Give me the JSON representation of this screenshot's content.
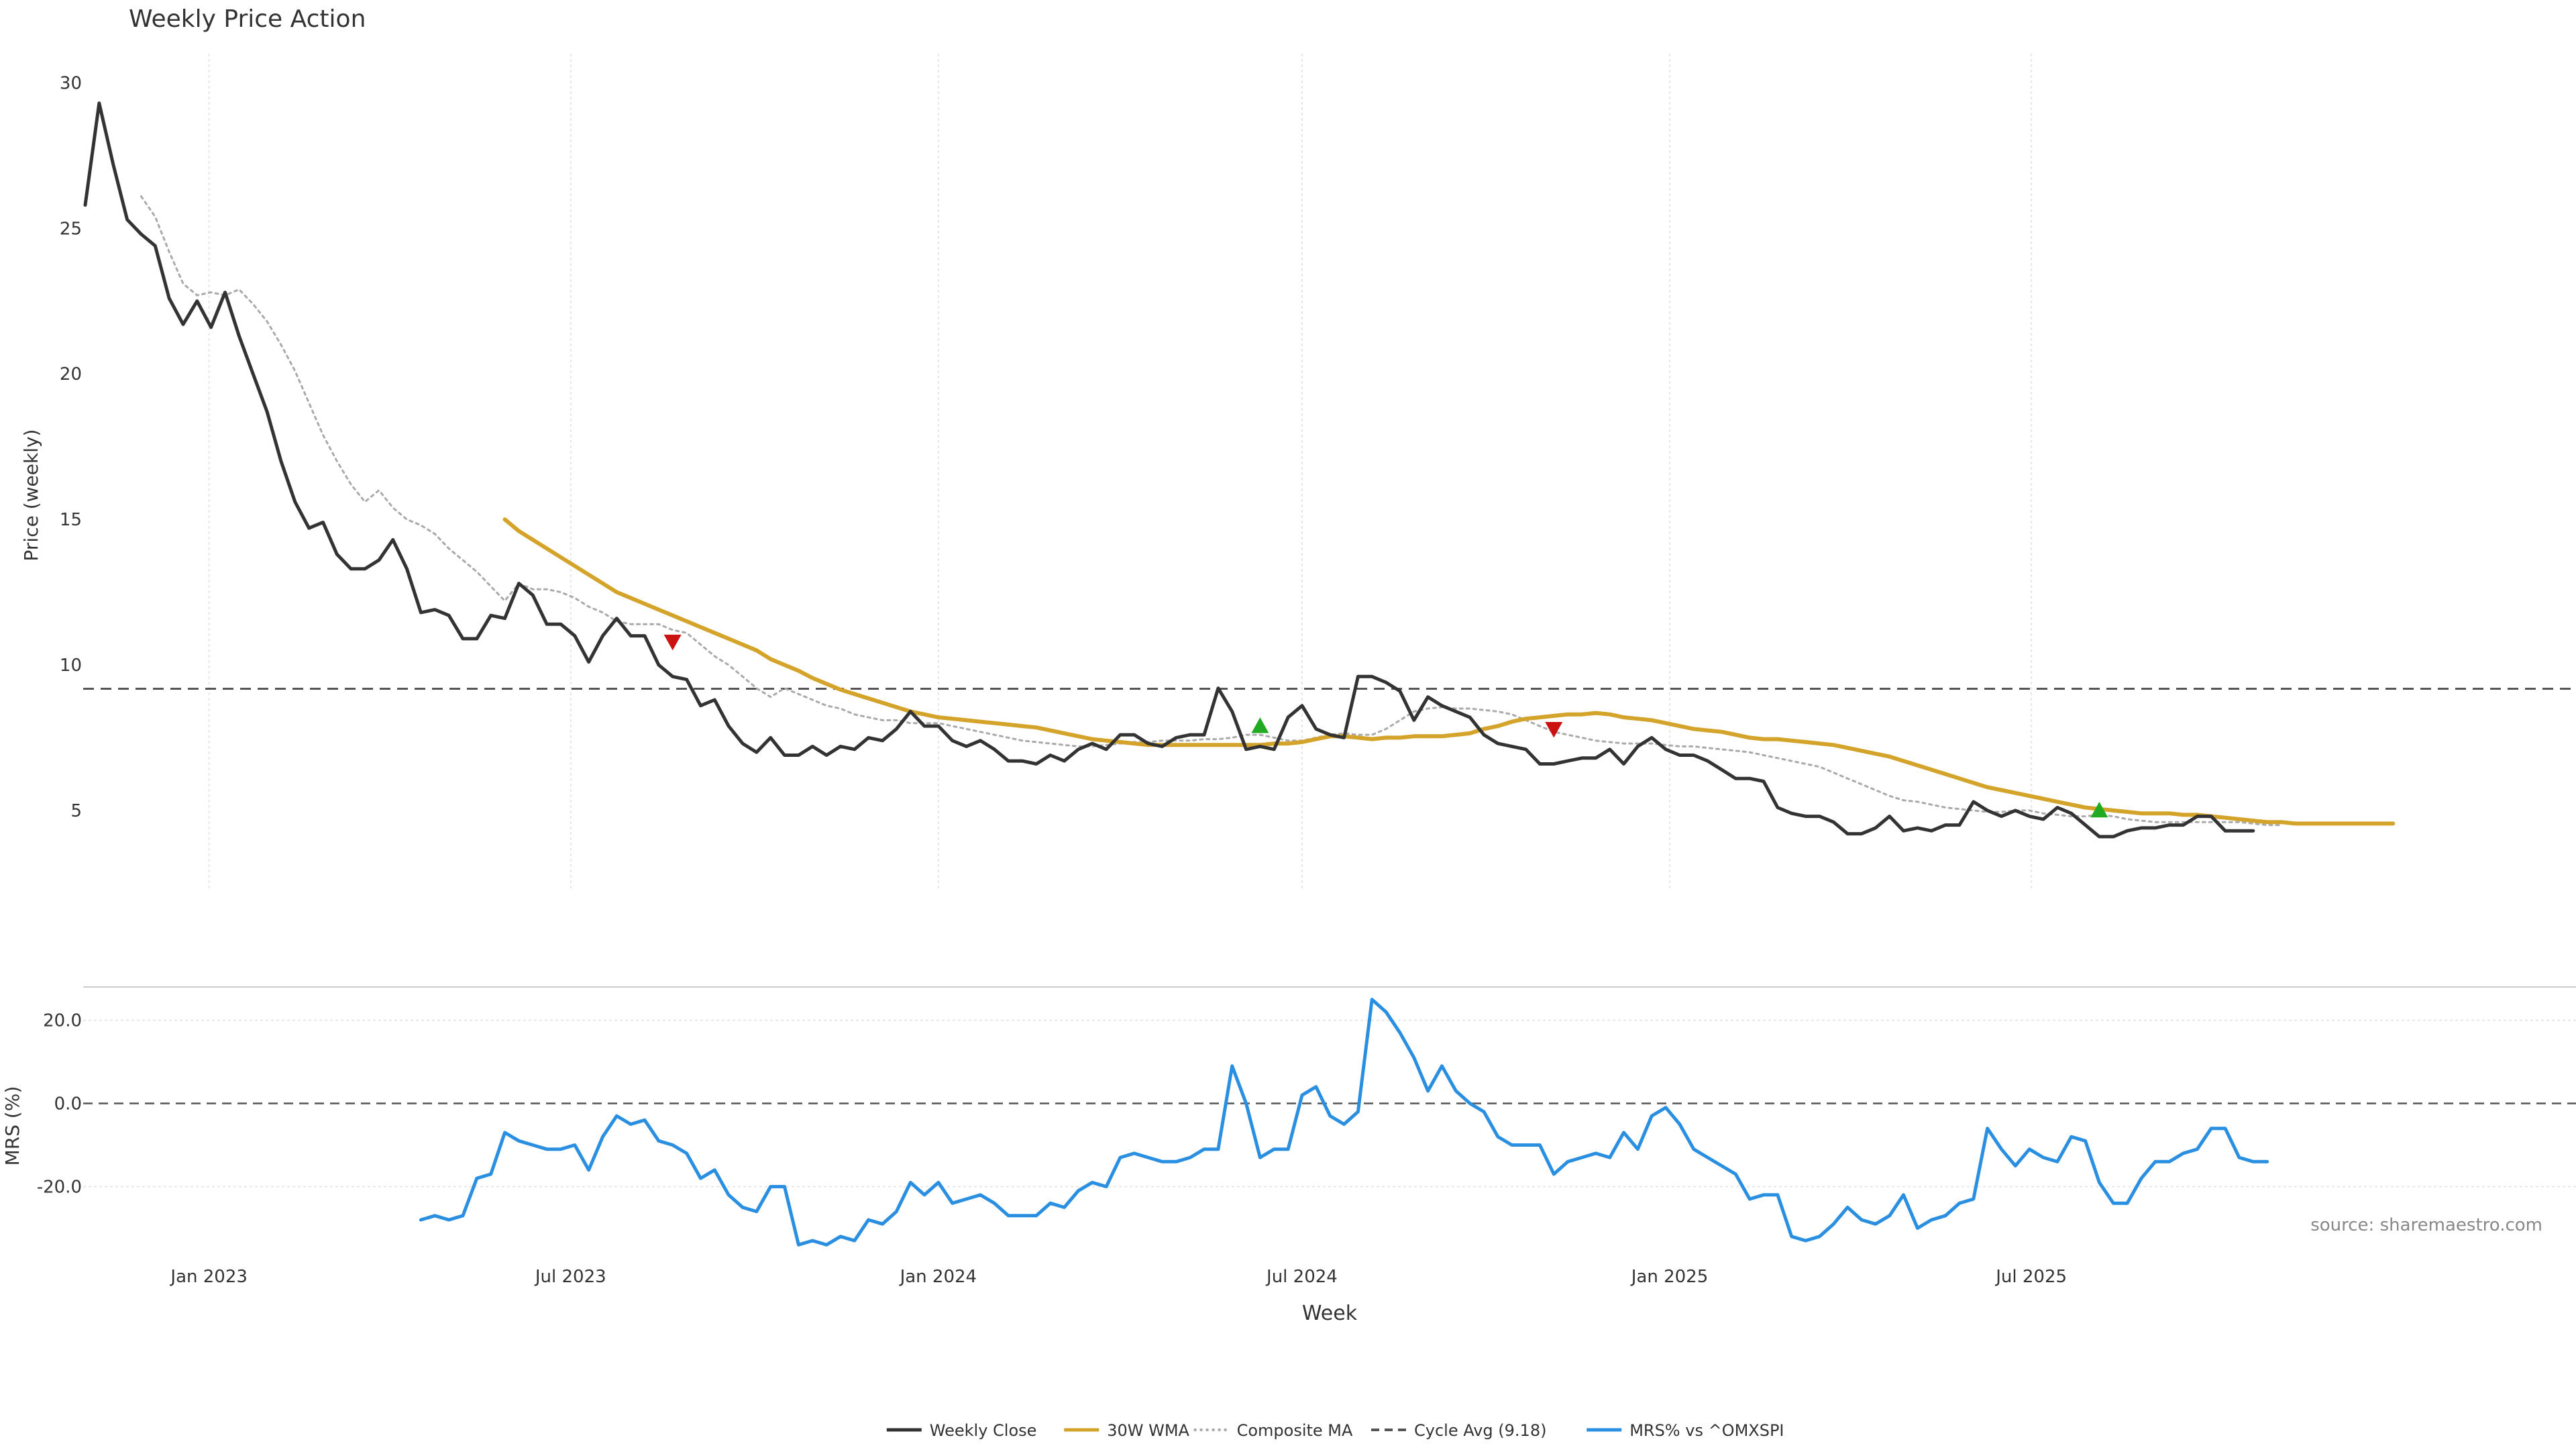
{
  "chart_data": [
    {
      "panel": "price",
      "type": "line",
      "title": "Weekly Price Action",
      "ylabel": "Price (weekly)",
      "ylim": [
        2.3,
        31
      ],
      "yticks": [
        5,
        10,
        15,
        20,
        25,
        30
      ],
      "grid": true,
      "x_start": "2022-10-31",
      "x_step_days": 7,
      "series": [
        {
          "name": "Weekly Close",
          "color": "#333333",
          "style": "solid",
          "values": [
            25.8,
            29.3,
            27.2,
            25.3,
            24.8,
            24.4,
            22.6,
            21.7,
            22.5,
            21.6,
            22.8,
            21.3,
            20.0,
            18.7,
            17.0,
            15.6,
            14.7,
            14.9,
            13.8,
            13.3,
            13.3,
            13.6,
            14.3,
            13.3,
            11.8,
            11.9,
            11.7,
            10.9,
            10.9,
            11.7,
            11.6,
            12.8,
            12.4,
            11.4,
            11.4,
            11.0,
            10.1,
            11.0,
            11.6,
            11.0,
            11.0,
            10.0,
            9.6,
            9.5,
            8.6,
            8.8,
            7.9,
            7.3,
            7.0,
            7.5,
            6.9,
            6.9,
            7.2,
            6.9,
            7.2,
            7.1,
            7.5,
            7.4,
            7.8,
            8.4,
            7.9,
            7.9,
            7.4,
            7.2,
            7.4,
            7.1,
            6.7,
            6.7,
            6.6,
            6.9,
            6.7,
            7.1,
            7.3,
            7.1,
            7.6,
            7.6,
            7.3,
            7.2,
            7.5,
            7.6,
            7.6,
            9.2,
            8.4,
            7.1,
            7.2,
            7.1,
            8.2,
            8.6,
            7.8,
            7.6,
            7.5,
            9.6,
            9.6,
            9.4,
            9.1,
            8.1,
            8.9,
            8.6,
            8.4,
            8.2,
            7.6,
            7.3,
            7.2,
            7.1,
            6.6,
            6.6,
            6.7,
            6.8,
            6.8,
            7.1,
            6.6,
            7.2,
            7.5,
            7.1,
            6.9,
            6.9,
            6.7,
            6.4,
            6.1,
            6.1,
            6.0,
            5.1,
            4.9,
            4.8,
            4.8,
            4.6,
            4.2,
            4.2,
            4.4,
            4.8,
            4.3,
            4.4,
            4.3,
            4.5,
            4.5,
            5.3,
            5.0,
            4.8,
            5.0,
            4.8,
            4.7,
            5.1,
            4.9,
            4.5,
            4.1,
            4.1,
            4.3,
            4.4,
            4.4,
            4.5,
            4.5,
            4.8,
            4.8,
            4.3,
            4.3,
            4.3
          ]
        },
        {
          "name": "30W WMA",
          "color": "#d4a32a",
          "style": "solid",
          "start_index": 30,
          "values": [
            15.0,
            14.6,
            14.3,
            14.0,
            13.7,
            13.4,
            13.1,
            12.8,
            12.5,
            12.3,
            12.1,
            11.9,
            11.7,
            11.5,
            11.3,
            11.1,
            10.9,
            10.7,
            10.5,
            10.2,
            10.0,
            9.8,
            9.55,
            9.35,
            9.15,
            9.0,
            8.85,
            8.7,
            8.55,
            8.4,
            8.3,
            8.2,
            8.15,
            8.1,
            8.05,
            8.0,
            7.95,
            7.9,
            7.85,
            7.75,
            7.65,
            7.55,
            7.45,
            7.4,
            7.35,
            7.3,
            7.25,
            7.25,
            7.25,
            7.25,
            7.25,
            7.25,
            7.25,
            7.25,
            7.25,
            7.3,
            7.3,
            7.35,
            7.45,
            7.55,
            7.55,
            7.5,
            7.45,
            7.5,
            7.5,
            7.55,
            7.55,
            7.55,
            7.6,
            7.65,
            7.8,
            7.9,
            8.05,
            8.15,
            8.2,
            8.25,
            8.3,
            8.3,
            8.35,
            8.3,
            8.2,
            8.15,
            8.1,
            8.0,
            7.9,
            7.8,
            7.75,
            7.7,
            7.6,
            7.5,
            7.45,
            7.45,
            7.4,
            7.35,
            7.3,
            7.25,
            7.15,
            7.05,
            6.95,
            6.85,
            6.7,
            6.55,
            6.4,
            6.25,
            6.1,
            5.95,
            5.8,
            5.7,
            5.6,
            5.5,
            5.4,
            5.3,
            5.2,
            5.1,
            5.05,
            5.0,
            4.95,
            4.9,
            4.9,
            4.9,
            4.85,
            4.85,
            4.8,
            4.75,
            4.7,
            4.65,
            4.6,
            4.6,
            4.55,
            4.55,
            4.55,
            4.55,
            4.55,
            4.55,
            4.55,
            4.55
          ]
        },
        {
          "name": "Composite MA",
          "color": "#aaaaaa",
          "style": "dotted",
          "start_index": 4,
          "values": [
            26.1,
            25.4,
            24.2,
            23.1,
            22.7,
            22.8,
            22.7,
            22.9,
            22.4,
            21.8,
            21.0,
            20.1,
            19.0,
            17.9,
            17.0,
            16.2,
            15.6,
            16.0,
            15.4,
            15.0,
            14.8,
            14.5,
            14.0,
            13.6,
            13.2,
            12.7,
            12.2,
            12.8,
            12.6,
            12.6,
            12.5,
            12.3,
            12.0,
            11.8,
            11.5,
            11.4,
            11.4,
            11.4,
            11.2,
            11.1,
            10.7,
            10.3,
            10.0,
            9.6,
            9.2,
            8.9,
            9.2,
            9.0,
            8.8,
            8.6,
            8.5,
            8.3,
            8.2,
            8.1,
            8.1,
            8.0,
            8.0,
            8.0,
            7.9,
            7.8,
            7.7,
            7.6,
            7.5,
            7.4,
            7.35,
            7.3,
            7.25,
            7.2,
            7.2,
            7.25,
            7.3,
            7.35,
            7.35,
            7.4,
            7.4,
            7.4,
            7.45,
            7.45,
            7.5,
            7.6,
            7.6,
            7.5,
            7.4,
            7.4,
            7.5,
            7.6,
            7.65,
            7.6,
            7.6,
            7.8,
            8.1,
            8.4,
            8.5,
            8.55,
            8.5,
            8.5,
            8.45,
            8.4,
            8.3,
            8.1,
            7.9,
            7.7,
            7.6,
            7.5,
            7.4,
            7.35,
            7.3,
            7.3,
            7.3,
            7.25,
            7.2,
            7.2,
            7.15,
            7.1,
            7.05,
            7.0,
            6.9,
            6.8,
            6.7,
            6.6,
            6.5,
            6.3,
            6.1,
            5.9,
            5.7,
            5.5,
            5.35,
            5.3,
            5.2,
            5.1,
            5.05,
            5.0,
            4.95,
            4.95,
            5.0,
            5.0,
            4.9,
            4.85,
            4.8,
            4.8,
            4.85,
            4.8,
            4.7,
            4.65,
            4.6,
            4.6,
            4.6,
            4.6,
            4.6,
            4.6,
            4.6,
            4.55,
            4.5,
            4.5
          ]
        },
        {
          "name": "Cycle Avg (9.18)",
          "color": "#555555",
          "style": "dashed",
          "value": 9.18
        }
      ],
      "markers": [
        {
          "type": "sell",
          "shape": "triangle-down",
          "color": "#cc1111",
          "x_index": 42,
          "y": 10.8
        },
        {
          "type": "buy",
          "shape": "triangle-up",
          "color": "#22aa22",
          "x_index": 84,
          "y": 7.9
        },
        {
          "type": "sell",
          "shape": "triangle-down",
          "color": "#cc1111",
          "x_index": 105,
          "y": 7.8
        },
        {
          "type": "buy",
          "shape": "triangle-up",
          "color": "#22aa22",
          "x_index": 144,
          "y": 5.0
        }
      ]
    },
    {
      "panel": "mrs",
      "type": "line",
      "ylabel": "MRS (%)",
      "xlabel": "Week",
      "ylim": [
        -38,
        28
      ],
      "yticks": [
        -20.0,
        0.0,
        20.0
      ],
      "ytick_labels": [
        "-20.0",
        "0.0",
        "20.0"
      ],
      "zero_line": {
        "value": 0,
        "style": "dashed",
        "color": "#555555"
      },
      "xticks": [
        "Jan 2023",
        "Jul 2023",
        "Jan 2024",
        "Jul 2024",
        "Jan 2025",
        "Jul 2025"
      ],
      "xtick_dates": [
        "2023-01-01",
        "2023-07-01",
        "2024-01-01",
        "2024-07-01",
        "2025-01-01",
        "2025-07-01"
      ],
      "series": [
        {
          "name": "MRS% vs ^OMXSPI",
          "color": "#2a8fe0",
          "style": "solid",
          "start_index": 24,
          "values": [
            -28,
            -27,
            -28,
            -27,
            -18,
            -17,
            -7,
            -9,
            -10,
            -11,
            -11,
            -10,
            -16,
            -8,
            -3,
            -5,
            -4,
            -9,
            -10,
            -12,
            -18,
            -16,
            -22,
            -25,
            -26,
            -20,
            -20,
            -34,
            -33,
            -34,
            -32,
            -33,
            -28,
            -29,
            -26,
            -19,
            -22,
            -19,
            -24,
            -23,
            -22,
            -24,
            -27,
            -27,
            -27,
            -24,
            -25,
            -21,
            -19,
            -20,
            -13,
            -12,
            -13,
            -14,
            -14,
            -13,
            -11,
            -11,
            9,
            0,
            -13,
            -11,
            -11,
            2,
            4,
            -3,
            -5,
            -2,
            25,
            22,
            17,
            11,
            3,
            9,
            3,
            0,
            -2,
            -8,
            -10,
            -10,
            -10,
            -17,
            -14,
            -13,
            -12,
            -13,
            -7,
            -11,
            -3,
            -1,
            -5,
            -11,
            -13,
            -15,
            -17,
            -23,
            -22,
            -22,
            -32,
            -33,
            -32,
            -29,
            -25,
            -28,
            -29,
            -27,
            -22,
            -30,
            -28,
            -27,
            -24,
            -23,
            -6,
            -11,
            -15,
            -11,
            -13,
            -14,
            -8,
            -9,
            -19,
            -24,
            -24,
            -18,
            -14,
            -14,
            -12,
            -11,
            -6,
            -6,
            -13,
            -14,
            -14
          ]
        }
      ],
      "annotation": "source: sharemaestro.com"
    }
  ],
  "legend": {
    "position": "bottom-center",
    "items": [
      {
        "label": "Weekly Close",
        "color": "#333333",
        "style": "solid"
      },
      {
        "label": "30W WMA",
        "color": "#d4a32a",
        "style": "solid"
      },
      {
        "label": "Composite MA",
        "color": "#aaaaaa",
        "style": "dotted"
      },
      {
        "label": "Cycle Avg (9.18)",
        "color": "#555555",
        "style": "dashed"
      },
      {
        "label": "MRS% vs ^OMXSPI",
        "color": "#2a8fe0",
        "style": "solid"
      }
    ]
  }
}
